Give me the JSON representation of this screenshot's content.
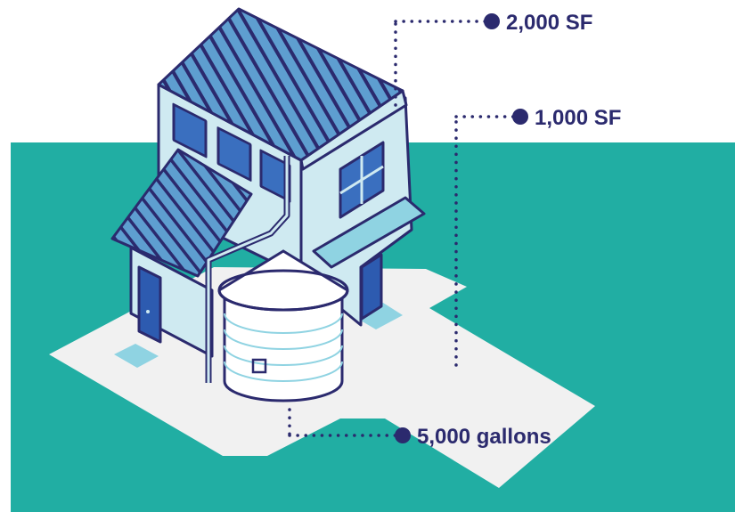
{
  "callouts": {
    "roof_upper": "2,000 SF",
    "roof_lower": "1,000 SF",
    "tank": "5,000 gallons"
  },
  "colors": {
    "ground": "#21aea3",
    "pad": "#f1f1f1",
    "outline": "#2b2a6e",
    "roof": "#5e9ed0",
    "wall": "#cfeaf1",
    "window": "#3a6fbf",
    "door": "#2d5bb0",
    "accent": "#8fd3e2"
  }
}
